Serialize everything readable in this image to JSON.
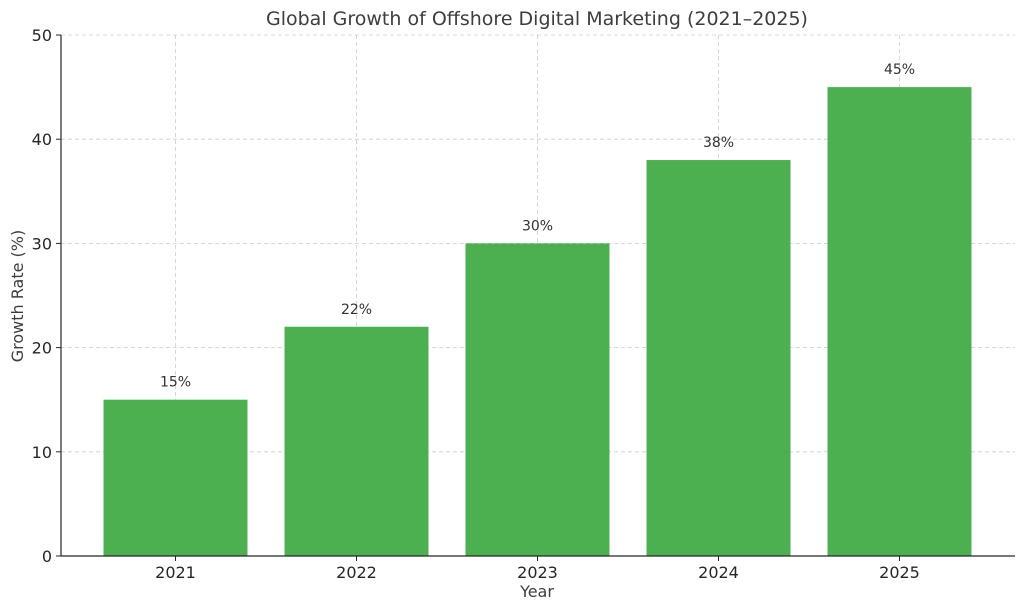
{
  "chart_data": {
    "type": "bar",
    "title": "Global Growth of Offshore Digital Marketing (2021–2025)",
    "xlabel": "Year",
    "ylabel": "Growth Rate (%)",
    "categories": [
      "2021",
      "2022",
      "2023",
      "2024",
      "2025"
    ],
    "values": [
      15,
      22,
      30,
      38,
      45
    ],
    "data_labels": [
      "15%",
      "22%",
      "30%",
      "38%",
      "45%"
    ],
    "ylim": [
      0,
      50
    ],
    "yticks": [
      0,
      10,
      20,
      30,
      40,
      50
    ],
    "grid": true,
    "bar_color": "#4caf50"
  }
}
